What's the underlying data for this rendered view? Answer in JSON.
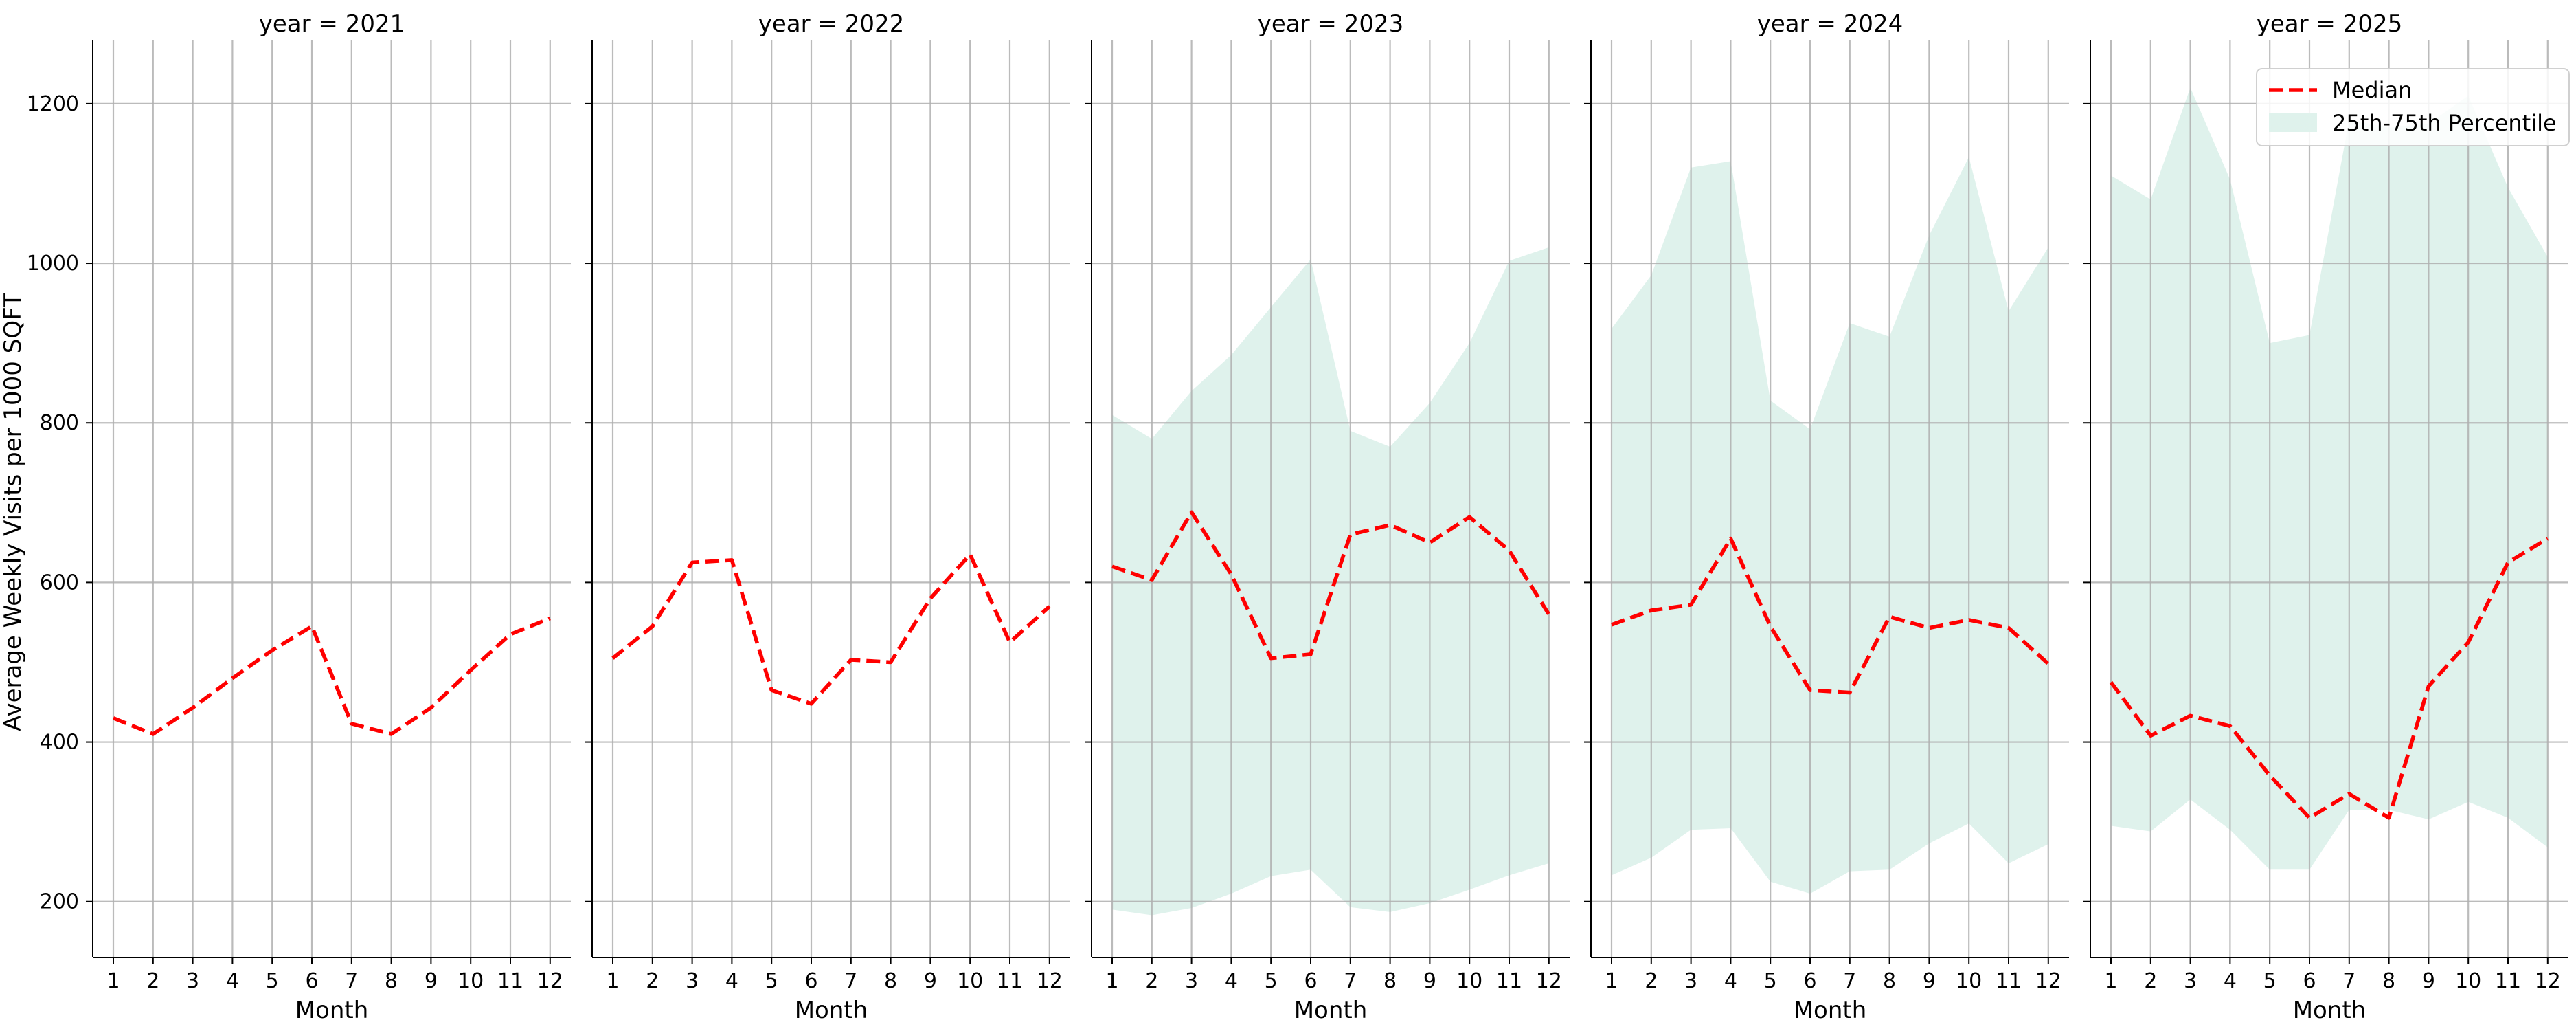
{
  "chart_data": {
    "type": "line",
    "ylabel": "Average Weekly Visits per 1000 SQFT",
    "xlabel": "Month",
    "x": [
      1,
      2,
      3,
      4,
      5,
      6,
      7,
      8,
      9,
      10,
      11,
      12
    ],
    "ylim": [
      130,
      1280
    ],
    "yticks": [
      200,
      400,
      600,
      800,
      1000,
      1200
    ],
    "grid": true,
    "legend": {
      "placement": "top-right (last panel)",
      "entries": [
        "Median",
        "25th-75th Percentile"
      ]
    },
    "colors": {
      "median": "#ff0000",
      "band": "#dff2ec"
    },
    "panels": [
      {
        "title": "year = 2021",
        "median": [
          430,
          410,
          443,
          480,
          515,
          545,
          423,
          410,
          443,
          490,
          535,
          555
        ],
        "p25": null,
        "p75": null
      },
      {
        "title": "year = 2022",
        "median": [
          505,
          545,
          625,
          628,
          465,
          448,
          503,
          500,
          580,
          635,
          525,
          570
        ],
        "p25": null,
        "p75": null
      },
      {
        "title": "year = 2023",
        "median": [
          620,
          603,
          688,
          610,
          505,
          510,
          660,
          672,
          650,
          682,
          640,
          560
        ],
        "p25": [
          190,
          183,
          192,
          210,
          232,
          240,
          193,
          187,
          198,
          215,
          233,
          248
        ],
        "p75": [
          810,
          780,
          840,
          885,
          945,
          1005,
          790,
          770,
          825,
          900,
          1003,
          1020
        ]
      },
      {
        "title": "year = 2024",
        "median": [
          547,
          565,
          572,
          655,
          545,
          465,
          462,
          557,
          543,
          553,
          543,
          498
        ],
        "p25": [
          233,
          255,
          290,
          292,
          225,
          210,
          238,
          240,
          273,
          298,
          248,
          272
        ],
        "p75": [
          918,
          985,
          1120,
          1128,
          828,
          792,
          925,
          908,
          1035,
          1133,
          940,
          1020
        ]
      },
      {
        "title": "year = 2025",
        "median": [
          475,
          408,
          433,
          420,
          358,
          305,
          335,
          305,
          470,
          525,
          625,
          655
        ],
        "p25": [
          295,
          288,
          328,
          290,
          240,
          240,
          315,
          315,
          303,
          325,
          305,
          268
        ],
        "p75": [
          1110,
          1080,
          1220,
          1105,
          900,
          910,
          1180,
          1170,
          1175,
          1210,
          1095,
          1008
        ]
      }
    ]
  }
}
